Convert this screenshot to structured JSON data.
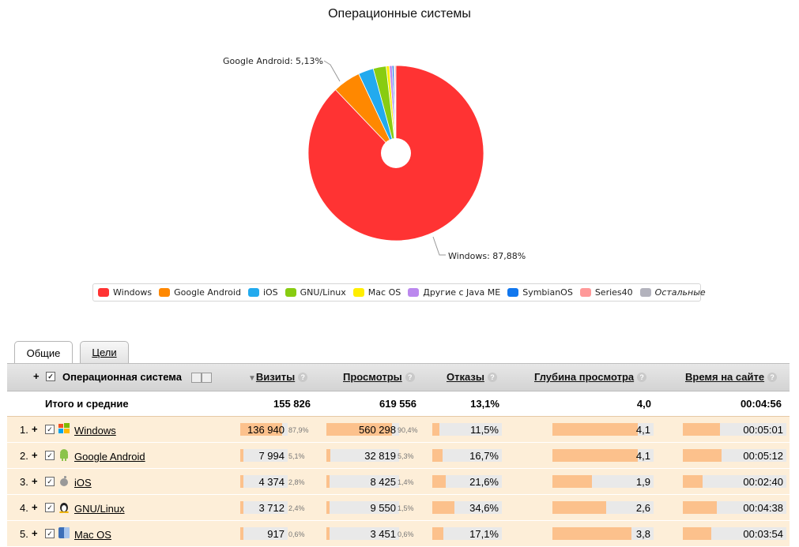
{
  "chart_data": {
    "type": "pie",
    "title": "Операционные системы",
    "slices": [
      {
        "name": "Windows",
        "value": 87.88,
        "color": "#ff3333"
      },
      {
        "name": "Google Android",
        "value": 5.13,
        "color": "#ff8800"
      },
      {
        "name": "iOS",
        "value": 2.81,
        "color": "#22aaee"
      },
      {
        "name": "GNU/Linux",
        "value": 2.38,
        "color": "#88cc11"
      },
      {
        "name": "Mac OS",
        "value": 0.59,
        "color": "#ffee00"
      },
      {
        "name": "Другие с Java ME",
        "value": 0.5,
        "color": "#bb88ee"
      },
      {
        "name": "SymbianOS",
        "value": 0.3,
        "color": "#1177ee"
      },
      {
        "name": "Series40",
        "value": 0.2,
        "color": "#ff9999"
      },
      {
        "name": "Остальные",
        "value": 0.21,
        "color": "#b3b3bd"
      }
    ],
    "labels": [
      {
        "slice": "Google Android",
        "text": "Google Android: 5,13%"
      },
      {
        "slice": "Windows",
        "text": "Windows: 87,88%"
      }
    ],
    "legend_position": "bottom"
  },
  "tabs": [
    "Общие",
    "Цели"
  ],
  "table": {
    "headers": {
      "os": "Операционная система",
      "visits": "Визиты",
      "views": "Просмотры",
      "bounces": "Отказы",
      "depth": "Глубина просмотра",
      "time": "Время на сайте"
    },
    "total": {
      "label": "Итого и средние",
      "visits": "155 826",
      "views": "619 556",
      "bounces": "13,1%",
      "depth": "4,0",
      "time": "00:04:56"
    },
    "rows": [
      {
        "num": "1.",
        "name": "Windows",
        "icon": "windows-icon",
        "visits": "136 940",
        "visits_pct": "87,9%",
        "visits_share": 0.879,
        "views": "560 298",
        "views_pct": "90,4%",
        "views_share": 0.904,
        "bounces": "11,5%",
        "bounce_share": 0.115,
        "depth": "4,1",
        "depth_share": 1.0,
        "time": "00:05:01",
        "time_share": 0.47
      },
      {
        "num": "2.",
        "name": "Google Android",
        "icon": "android-icon",
        "visits": "7 994",
        "visits_pct": "5,1%",
        "visits_share": 0.051,
        "views": "32 819",
        "views_pct": "5,3%",
        "views_share": 0.053,
        "bounces": "16,7%",
        "bounce_share": 0.167,
        "depth": "4,1",
        "depth_share": 1.0,
        "time": "00:05:12",
        "time_share": 0.49
      },
      {
        "num": "3.",
        "name": "iOS",
        "icon": "apple-icon",
        "visits": "4 374",
        "visits_pct": "2,8%",
        "visits_share": 0.028,
        "views": "8 425",
        "views_pct": "1,4%",
        "views_share": 0.014,
        "bounces": "21,6%",
        "bounce_share": 0.216,
        "depth": "1,9",
        "depth_share": 0.46,
        "time": "00:02:40",
        "time_share": 0.25
      },
      {
        "num": "4.",
        "name": "GNU/Linux",
        "icon": "linux-icon",
        "visits": "3 712",
        "visits_pct": "2,4%",
        "visits_share": 0.024,
        "views": "9 550",
        "views_pct": "1,5%",
        "views_share": 0.015,
        "bounces": "34,6%",
        "bounce_share": 0.346,
        "depth": "2,6",
        "depth_share": 0.63,
        "time": "00:04:38",
        "time_share": 0.43
      },
      {
        "num": "5.",
        "name": "Mac OS",
        "icon": "mac-os-icon",
        "visits": "917",
        "visits_pct": "0,6%",
        "visits_share": 0.006,
        "views": "3 451",
        "views_pct": "0,6%",
        "views_share": 0.006,
        "bounces": "17,1%",
        "bounce_share": 0.171,
        "depth": "3,8",
        "depth_share": 0.93,
        "time": "00:03:54",
        "time_share": 0.36
      }
    ]
  }
}
